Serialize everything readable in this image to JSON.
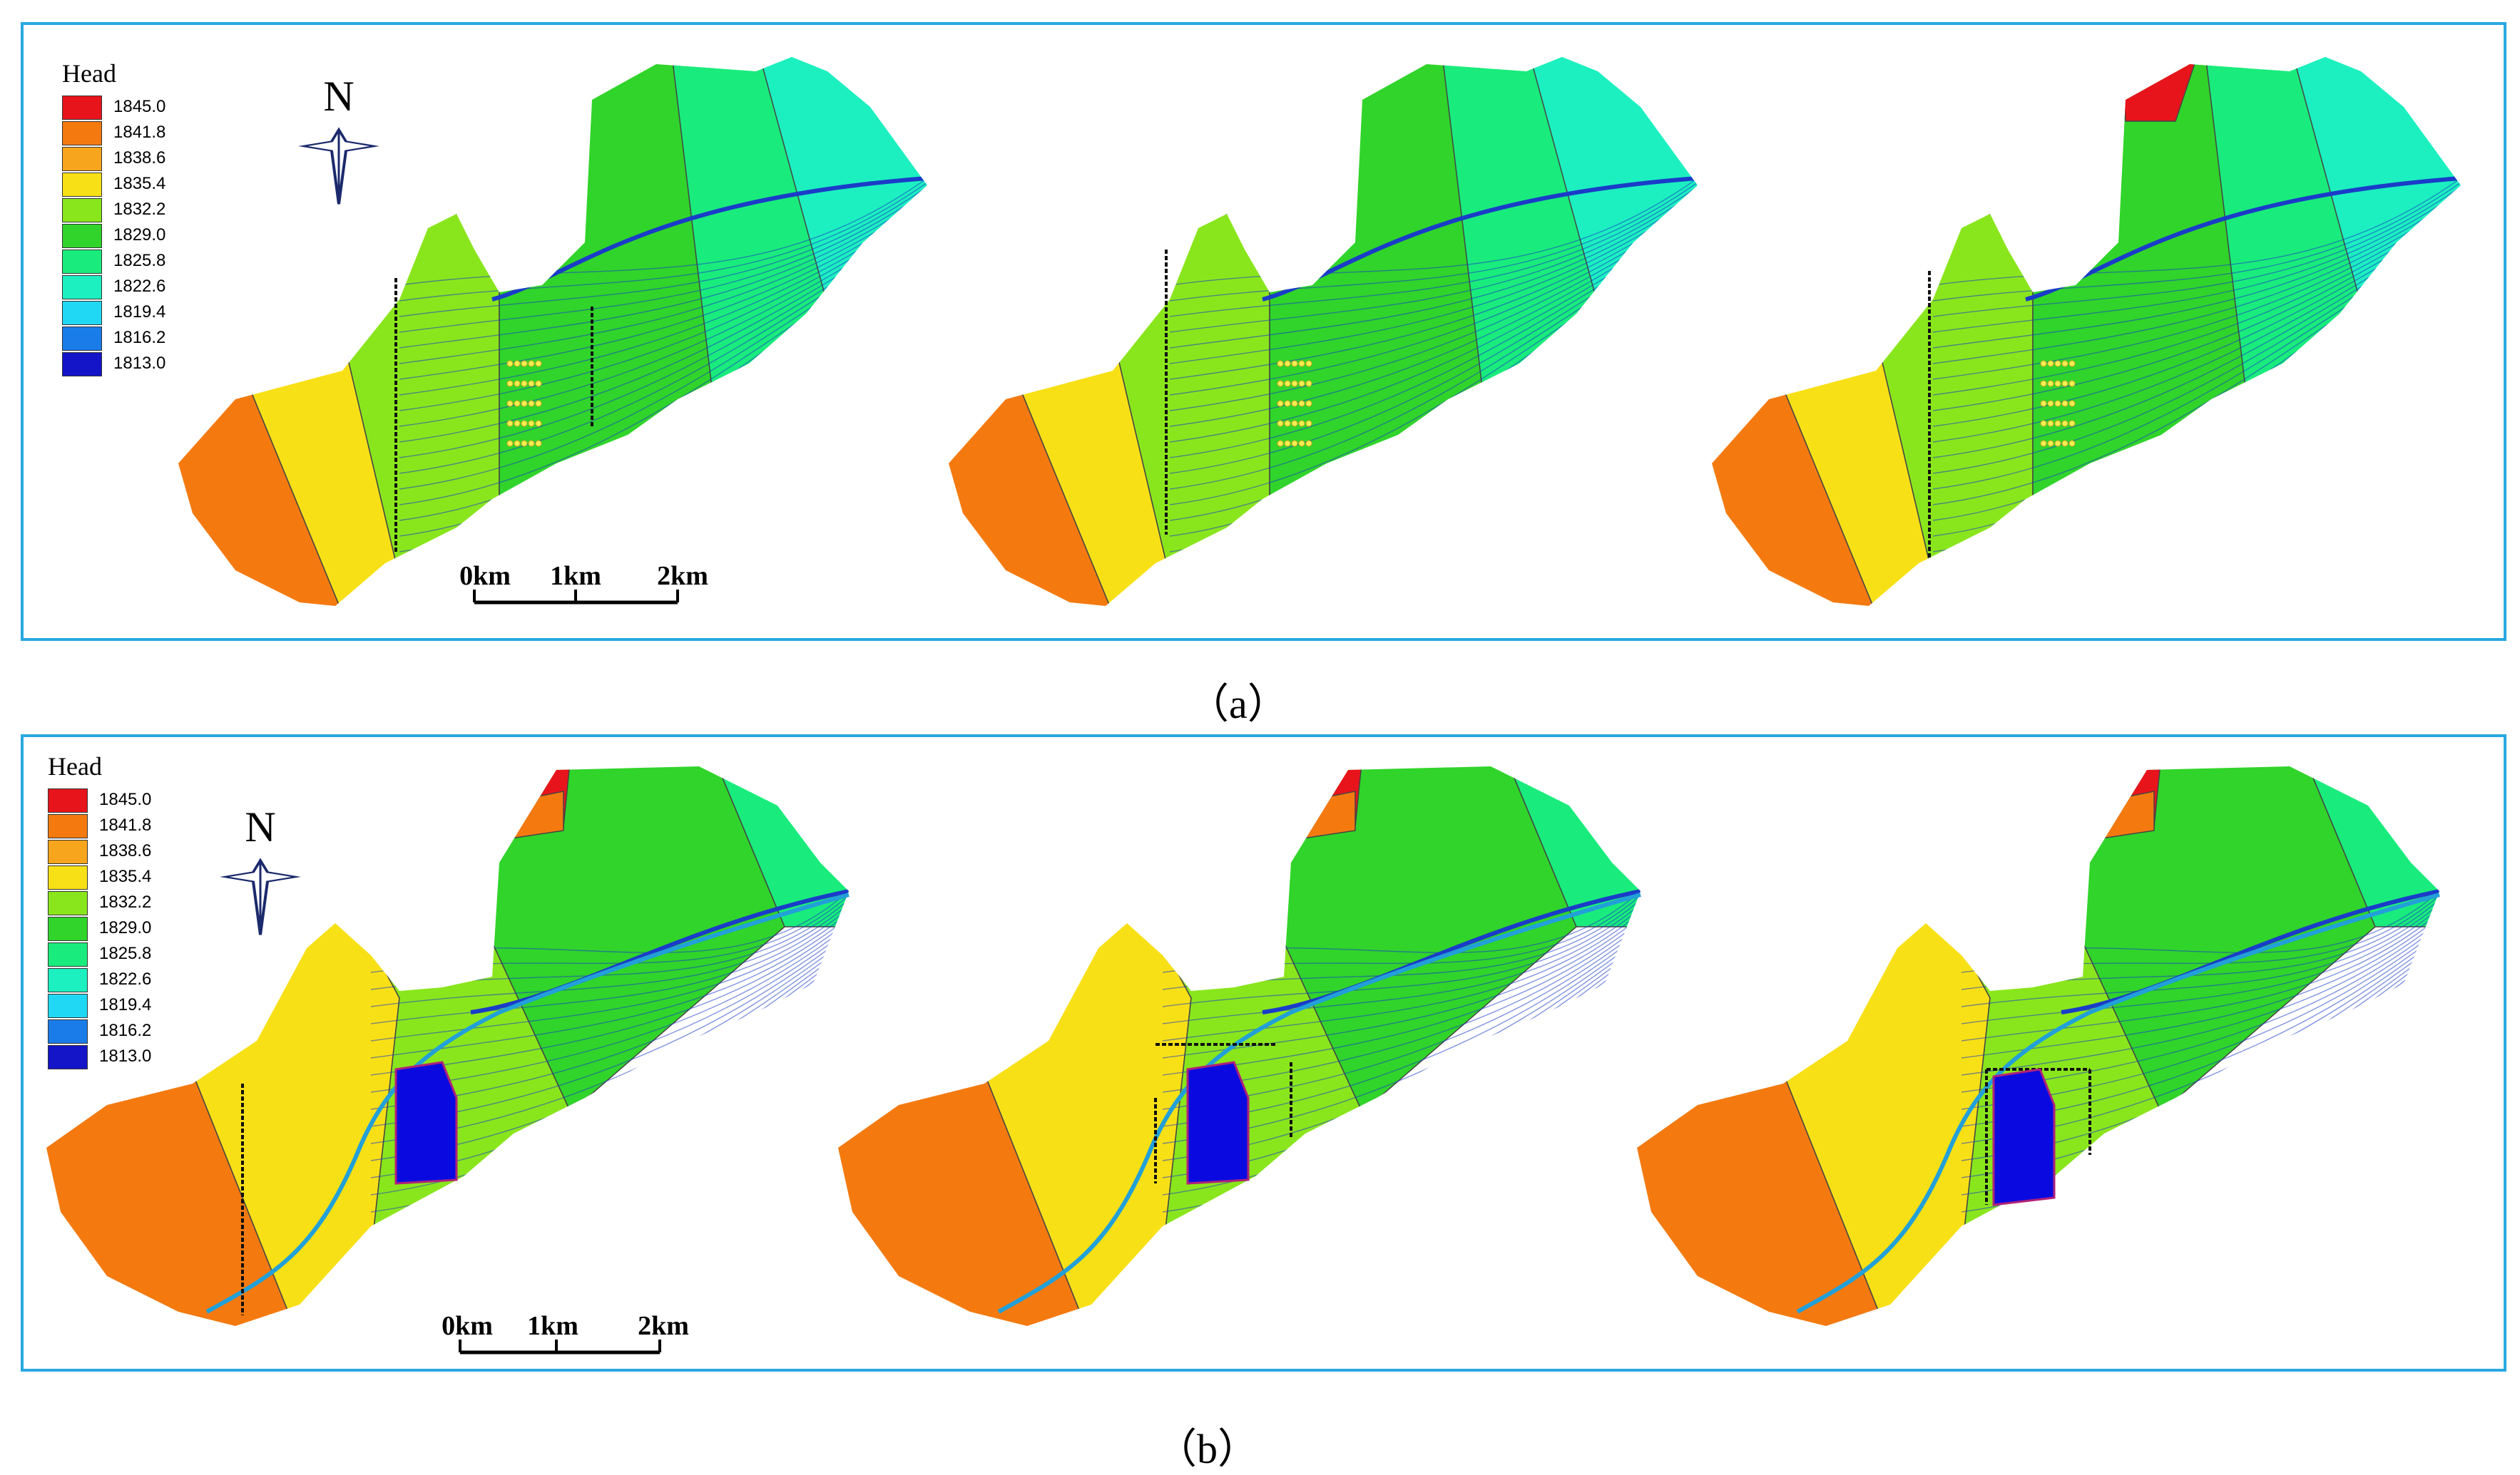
{
  "legend": {
    "title": "Head",
    "levels": [
      {
        "value": "1845.0",
        "color": "#e8141c"
      },
      {
        "value": "1841.8",
        "color": "#f47a10"
      },
      {
        "value": "1838.6",
        "color": "#f7a51c"
      },
      {
        "value": "1835.4",
        "color": "#f8e016"
      },
      {
        "value": "1832.2",
        "color": "#8ae61c"
      },
      {
        "value": "1829.0",
        "color": "#30d42a"
      },
      {
        "value": "1825.8",
        "color": "#19ec7c"
      },
      {
        "value": "1822.6",
        "color": "#1cf0c0"
      },
      {
        "value": "1819.4",
        "color": "#20d8f4"
      },
      {
        "value": "1816.2",
        "color": "#1a7ce8"
      },
      {
        "value": "1813.0",
        "color": "#1414c8"
      }
    ]
  },
  "north_arrow": {
    "label": "N"
  },
  "scale_bar": {
    "labels": [
      "0km",
      "1km",
      "2km"
    ]
  },
  "panels": [
    {
      "caption": "（a）"
    },
    {
      "caption": "（b）"
    }
  ],
  "colors": {
    "frame": "#29a8e0",
    "flowline": "#1a3cc8",
    "river": "#22a0d8"
  }
}
